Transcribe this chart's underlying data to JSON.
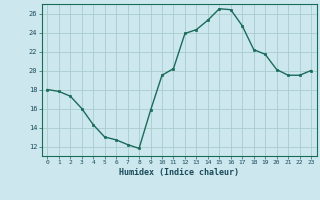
{
  "x": [
    0,
    1,
    2,
    3,
    4,
    5,
    6,
    7,
    8,
    9,
    10,
    11,
    12,
    13,
    14,
    15,
    16,
    17,
    18,
    19,
    20,
    21,
    22,
    23
  ],
  "y": [
    18.0,
    17.8,
    17.3,
    16.0,
    14.3,
    13.0,
    12.7,
    12.2,
    11.8,
    15.8,
    19.5,
    20.2,
    23.9,
    24.3,
    25.3,
    26.5,
    26.4,
    24.7,
    22.2,
    21.7,
    20.1,
    19.5,
    19.5,
    20.0
  ],
  "xlabel": "Humidex (Indice chaleur)",
  "ylim": [
    11,
    27
  ],
  "xlim": [
    -0.5,
    23.5
  ],
  "yticks": [
    12,
    14,
    16,
    18,
    20,
    22,
    24,
    26
  ],
  "xticks": [
    0,
    1,
    2,
    3,
    4,
    5,
    6,
    7,
    8,
    9,
    10,
    11,
    12,
    13,
    14,
    15,
    16,
    17,
    18,
    19,
    20,
    21,
    22,
    23
  ],
  "line_color": "#1a6b5a",
  "marker_color": "#1a6b5a",
  "bg_color": "#cce8ee",
  "grid_color": "#aacccc",
  "axis_color": "#1a6b5a",
  "label_color": "#1a4a5a",
  "font_family": "monospace"
}
